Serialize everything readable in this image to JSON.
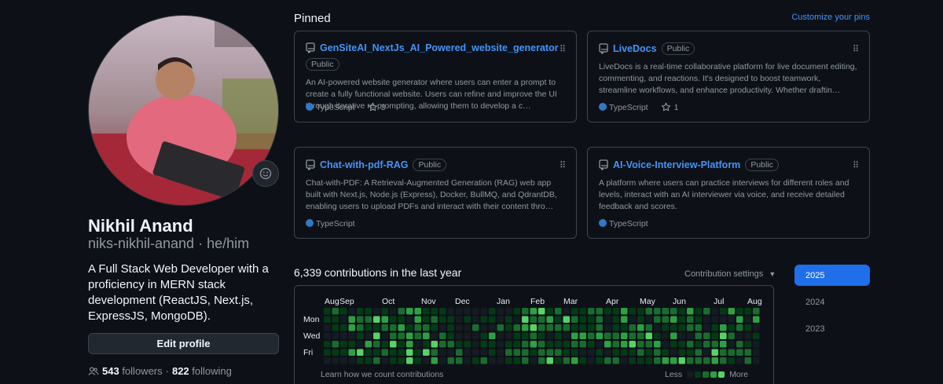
{
  "profile": {
    "name": "Nikhil Anand",
    "handle": "niks-nikhil-anand · he/him",
    "bio": "A Full Stack Web Developer with a proficiency in MERN stack development (ReactJS, Next.js, ExpressJS, MongoDB).",
    "edit_label": "Edit profile",
    "followers_count": "543",
    "followers_label": "followers",
    "separator": "·",
    "following_count": "822",
    "following_label": "following"
  },
  "pinned": {
    "title": "Pinned",
    "customize_label": "Customize your pins",
    "repos": [
      {
        "name": "GenSiteAI_NextJs_AI_Powered_website_generator",
        "visibility": "Public",
        "description": "An AI-powered website generator where users can enter a prompt to create a fully functional website. Users can refine and improve the UI through iterative re-prompting, allowing them to develop a c…",
        "language": "TypeScript",
        "stars": "3"
      },
      {
        "name": "LiveDocs",
        "visibility": "Public",
        "description": "LiveDocs is a real-time collaborative platform for live document editing, commenting, and reactions. It's designed to boost teamwork, streamline workflows, and enhance productivity. Whether draftin…",
        "language": "TypeScript",
        "stars": "1"
      },
      {
        "name": "Chat-with-pdf-RAG",
        "visibility": "Public",
        "description": "Chat-with-PDF: A Retrieval-Augmented Generation (RAG) web app built with Next.js, Node.js (Express), Docker, BullMQ, and QdrantDB, enabling users to upload PDFs and interact with their content thro…",
        "language": "TypeScript",
        "stars": ""
      },
      {
        "name": "AI-Voice-Interview-Platform",
        "visibility": "Public",
        "description": "A platform where users can practice interviews for different roles and levels, interact with an AI interviewer via voice, and receive detailed feedback and scores.",
        "language": "TypeScript",
        "stars": ""
      }
    ]
  },
  "contributions": {
    "title": "6,339 contributions in the last year",
    "settings_label": "Contribution settings",
    "months": [
      "Aug",
      "Sep",
      "Oct",
      "Nov",
      "Dec",
      "Jan",
      "Feb",
      "Mar",
      "Apr",
      "May",
      "Jun",
      "Jul",
      "Aug"
    ],
    "days": [
      "Mon",
      "Wed",
      "Fri"
    ],
    "learn_label": "Learn how we count contributions",
    "legend_less": "Less",
    "legend_more": "More",
    "colors": [
      "#151b23",
      "#033a16",
      "#196c2e",
      "#2ea043",
      "#56d364"
    ]
  },
  "years": [
    "2025",
    "2024",
    "2023"
  ],
  "icons": {
    "repo": "repo-icon",
    "star": "star-icon",
    "drag": "grabber-icon",
    "people": "people-icon",
    "smiley": "smiley-icon",
    "caret": "triangle-down-icon"
  }
}
